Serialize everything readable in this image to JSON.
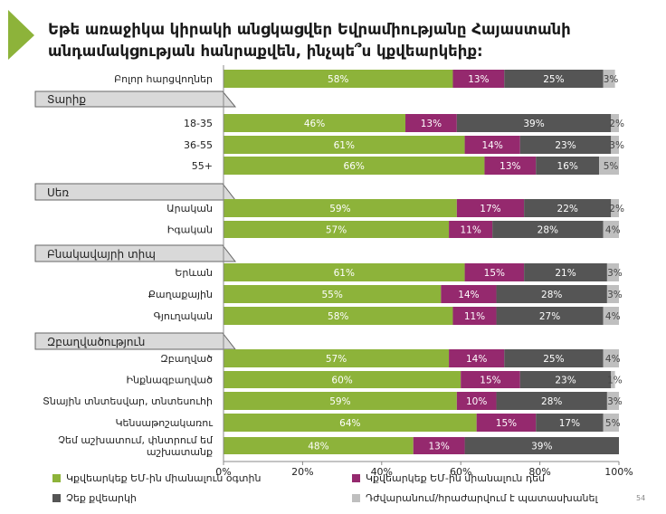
{
  "title_lines": [
    "Եթե առաջիկա կիրակի անցկացվեր Եվրամիությանը Հայաստանի",
    "անդամակցության հանրաքվեն, ինչպե՞ս կքվեարկեիք:"
  ],
  "page_number": "54",
  "colors": {
    "accent": "#8db33a",
    "yes": "#8db33a",
    "no": "#95296e",
    "wont_vote": "#555555",
    "hard_to_say": "#bfbfbf",
    "section_bar": "#d9d9d9"
  },
  "chart_data": {
    "type": "bar",
    "orientation": "horizontal",
    "stacked": true,
    "xlim": [
      0,
      100
    ],
    "x_ticks": [
      "0%",
      "20%",
      "40%",
      "60%",
      "80%",
      "100%"
    ],
    "legend_position": "bottom",
    "series_names": [
      "Կքվեարկեք ԵՄ-ին միանալուն օգտին",
      "Կքվեարկեք ԵՄ-ին միանալուն դեմ",
      "Չեք քվեարկի",
      "Դժվարանում/հրաժարվում է պատասխանել"
    ],
    "rows": [
      {
        "type": "row",
        "label": "Բոլոր հարցվողներ",
        "values": [
          58,
          13,
          25,
          3
        ]
      },
      {
        "type": "section",
        "label": "Տարիք"
      },
      {
        "type": "row",
        "label": "18-35",
        "values": [
          46,
          13,
          39,
          2
        ]
      },
      {
        "type": "row",
        "label": "36-55",
        "values": [
          61,
          14,
          23,
          3
        ]
      },
      {
        "type": "row",
        "label": "55+",
        "values": [
          66,
          13,
          16,
          5
        ]
      },
      {
        "type": "section",
        "label": "Սեռ"
      },
      {
        "type": "row",
        "label": "Արական",
        "values": [
          59,
          17,
          22,
          2
        ]
      },
      {
        "type": "row",
        "label": "Իգական",
        "values": [
          57,
          11,
          28,
          4
        ]
      },
      {
        "type": "section",
        "label": "Բնակավայրի տիպ"
      },
      {
        "type": "row",
        "label": "Երևան",
        "values": [
          61,
          15,
          21,
          3
        ]
      },
      {
        "type": "row",
        "label": "Քաղաքային",
        "values": [
          55,
          14,
          28,
          3
        ]
      },
      {
        "type": "row",
        "label": "Գյուղական",
        "values": [
          58,
          11,
          27,
          4
        ]
      },
      {
        "type": "section",
        "label": "Զբաղվածություն"
      },
      {
        "type": "row",
        "label": "Զբաղված",
        "values": [
          57,
          14,
          25,
          4
        ]
      },
      {
        "type": "row",
        "label": "Ինքնազբաղված",
        "values": [
          60,
          15,
          23,
          1
        ]
      },
      {
        "type": "row",
        "label": "Տնային տնտեսվար, տնտեսուհի",
        "values": [
          59,
          10,
          28,
          3
        ]
      },
      {
        "type": "row",
        "label": "Կենսաթոշակառու",
        "values": [
          64,
          15,
          17,
          5
        ]
      },
      {
        "type": "row",
        "label": "Չեմ աշխատում, փնտրում եմ աշխատանք",
        "label_lines": [
          "Չեմ աշխատում, փնտրում եմ",
          "աշխատանք"
        ],
        "values": [
          48,
          13,
          39,
          null
        ]
      }
    ]
  }
}
